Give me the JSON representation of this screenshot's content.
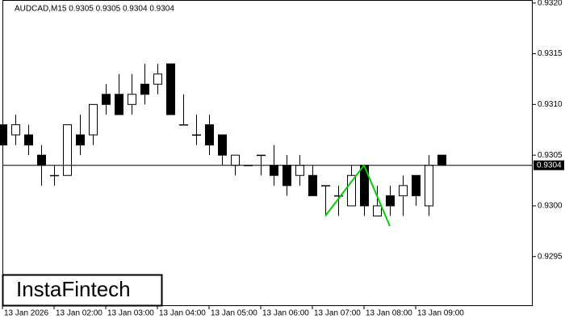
{
  "chart_data": {
    "type": "candlestick",
    "title": "AUDCAD,M15  0.9305 0.9305 0.9304 0.9304",
    "categories": [
      "13 Jan 2026",
      null,
      null,
      null,
      "13 Jan 02:00",
      null,
      null,
      null,
      "13 Jan 03:00",
      null,
      null,
      null,
      "13 Jan 04:00",
      null,
      null,
      null,
      "13 Jan 05:00",
      null,
      null,
      null,
      "13 Jan 06:00",
      null,
      null,
      null,
      "13 Jan 07:00",
      null,
      null,
      null,
      "13 Jan 08:00",
      null,
      null,
      null,
      "13 Jan 09:00",
      null,
      null
    ],
    "open": [
      0.9308,
      0.9307,
      0.9307,
      0.9305,
      0.9303,
      0.9303,
      0.9307,
      0.9307,
      0.9311,
      0.9311,
      0.931,
      0.9312,
      0.9312,
      0.9314,
      0.9308,
      0.9307,
      0.9308,
      0.9307,
      0.9304,
      0.9304,
      0.9305,
      0.9304,
      0.9304,
      0.9303,
      0.9303,
      0.9302,
      0.9301,
      0.93,
      0.9304,
      0.9299,
      0.9301,
      0.9301,
      0.9303,
      0.93,
      0.9305
    ],
    "high": [
      0.9308,
      0.9309,
      0.9308,
      0.9306,
      0.9304,
      0.9308,
      0.9309,
      0.931,
      0.9312,
      0.9313,
      0.9313,
      0.9314,
      0.9314,
      0.9314,
      0.9311,
      0.9309,
      0.9309,
      0.9307,
      0.9305,
      0.9304,
      0.9305,
      0.9306,
      0.9305,
      0.9305,
      0.9304,
      0.9302,
      0.9302,
      0.9304,
      0.9304,
      0.9302,
      0.9302,
      0.9303,
      0.9303,
      0.9305,
      0.9305
    ],
    "low": [
      0.9306,
      0.9306,
      0.9305,
      0.9302,
      0.9302,
      0.9303,
      0.9305,
      0.9306,
      0.9309,
      0.9309,
      0.9309,
      0.931,
      0.9311,
      0.9309,
      0.9308,
      0.9306,
      0.9305,
      0.9304,
      0.9303,
      0.9304,
      0.9303,
      0.9302,
      0.9301,
      0.9302,
      0.9301,
      0.9299,
      0.9299,
      0.93,
      0.9299,
      0.9299,
      0.9299,
      0.9299,
      0.93,
      0.9299,
      0.9304
    ],
    "close": [
      0.9306,
      0.9308,
      0.9306,
      0.9304,
      0.9303,
      0.9308,
      0.9306,
      0.931,
      0.931,
      0.9309,
      0.9311,
      0.9311,
      0.9313,
      0.9309,
      0.9308,
      0.9307,
      0.9306,
      0.9305,
      0.9305,
      0.9304,
      0.9305,
      0.9303,
      0.9302,
      0.9304,
      0.9301,
      0.9302,
      0.9301,
      0.9303,
      0.93,
      0.93,
      0.93,
      0.9302,
      0.9301,
      0.9304,
      0.9304
    ],
    "up_color": "#ffffff",
    "down_color": "#000000",
    "ylim": [
      0.92902,
      0.93203
    ],
    "yticks": [
      0.9295,
      {
        "value": 0.93,
        "label": "0.9300"
      },
      0.9305,
      {
        "value": 0.931,
        "label": "0.9310"
      },
      0.9315,
      {
        "value": 0.932,
        "label": "0.9320"
      }
    ],
    "current_price": 0.9304,
    "pattern": {
      "color": "#00d000",
      "x": [
        25,
        28,
        30
      ],
      "values": [
        0.9299,
        0.9304,
        0.9298
      ]
    },
    "grid": false,
    "watermark": "InstaFintech"
  }
}
